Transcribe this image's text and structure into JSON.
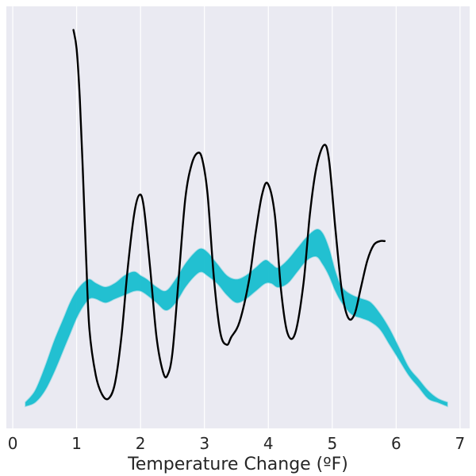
{
  "chart_data": {
    "type": "line",
    "title": "",
    "xlabel": "Temperature Change (ºF)",
    "ylabel": "",
    "xlim": [
      -0.1,
      7.15
    ],
    "ylim": [
      0,
      1
    ],
    "x_ticks": [
      "0",
      "1",
      "2",
      "3",
      "4",
      "5",
      "6",
      "7"
    ],
    "grid": true,
    "colors": {
      "background": "#EAEAF2",
      "band": "#17BECF",
      "line": "#000000",
      "grid": "#FFFFFF"
    },
    "series": [
      {
        "kind": "line",
        "color": "#000000",
        "x": [
          0.95,
          1.0,
          1.05,
          1.1,
          1.15,
          1.2,
          1.3,
          1.4,
          1.5,
          1.6,
          1.7,
          1.8,
          1.9,
          1.98,
          2.05,
          2.15,
          2.25,
          2.35,
          2.42,
          2.5,
          2.6,
          2.7,
          2.8,
          2.9,
          2.97,
          3.05,
          3.15,
          3.25,
          3.35,
          3.42,
          3.55,
          3.7,
          3.8,
          3.9,
          3.99,
          4.1,
          4.2,
          4.3,
          4.42,
          4.55,
          4.65,
          4.75,
          4.87,
          4.95,
          5.05,
          5.15,
          5.25,
          5.35,
          5.45,
          5.55,
          5.65,
          5.75,
          5.82
        ],
        "y": [
          0.98,
          0.93,
          0.8,
          0.6,
          0.38,
          0.2,
          0.08,
          0.03,
          0.02,
          0.06,
          0.18,
          0.36,
          0.5,
          0.55,
          0.52,
          0.36,
          0.18,
          0.09,
          0.08,
          0.14,
          0.34,
          0.54,
          0.63,
          0.66,
          0.64,
          0.55,
          0.33,
          0.19,
          0.16,
          0.18,
          0.22,
          0.33,
          0.45,
          0.55,
          0.58,
          0.5,
          0.3,
          0.19,
          0.19,
          0.32,
          0.5,
          0.62,
          0.68,
          0.64,
          0.46,
          0.3,
          0.23,
          0.24,
          0.31,
          0.38,
          0.42,
          0.43,
          0.43
        ]
      },
      {
        "kind": "band",
        "color": "#17BECF",
        "x": [
          0.2,
          0.35,
          0.5,
          0.65,
          0.8,
          0.9,
          1.0,
          1.1,
          1.2,
          1.3,
          1.45,
          1.6,
          1.75,
          1.9,
          2.0,
          2.1,
          2.25,
          2.4,
          2.55,
          2.7,
          2.85,
          2.95,
          3.05,
          3.2,
          3.35,
          3.5,
          3.65,
          3.8,
          3.95,
          4.05,
          4.15,
          4.3,
          4.45,
          4.6,
          4.75,
          4.85,
          4.95,
          5.05,
          5.15,
          5.3,
          5.45,
          5.6,
          5.75,
          5.9,
          6.05,
          6.2,
          6.35,
          6.5,
          6.65,
          6.8
        ],
        "y_low": [
          0.0,
          0.01,
          0.04,
          0.09,
          0.15,
          0.19,
          0.23,
          0.26,
          0.28,
          0.28,
          0.27,
          0.28,
          0.29,
          0.3,
          0.3,
          0.29,
          0.27,
          0.25,
          0.27,
          0.31,
          0.34,
          0.35,
          0.34,
          0.32,
          0.29,
          0.27,
          0.28,
          0.3,
          0.32,
          0.32,
          0.31,
          0.32,
          0.35,
          0.38,
          0.39,
          0.37,
          0.34,
          0.3,
          0.27,
          0.24,
          0.23,
          0.22,
          0.2,
          0.16,
          0.12,
          0.08,
          0.05,
          0.02,
          0.01,
          0.0
        ],
        "y_high": [
          0.01,
          0.04,
          0.1,
          0.17,
          0.23,
          0.27,
          0.3,
          0.32,
          0.33,
          0.32,
          0.31,
          0.32,
          0.34,
          0.35,
          0.34,
          0.33,
          0.31,
          0.3,
          0.33,
          0.37,
          0.4,
          0.41,
          0.4,
          0.37,
          0.34,
          0.33,
          0.34,
          0.36,
          0.38,
          0.37,
          0.36,
          0.38,
          0.41,
          0.44,
          0.46,
          0.45,
          0.41,
          0.35,
          0.31,
          0.29,
          0.28,
          0.27,
          0.24,
          0.2,
          0.15,
          0.1,
          0.07,
          0.04,
          0.02,
          0.01
        ]
      }
    ]
  }
}
